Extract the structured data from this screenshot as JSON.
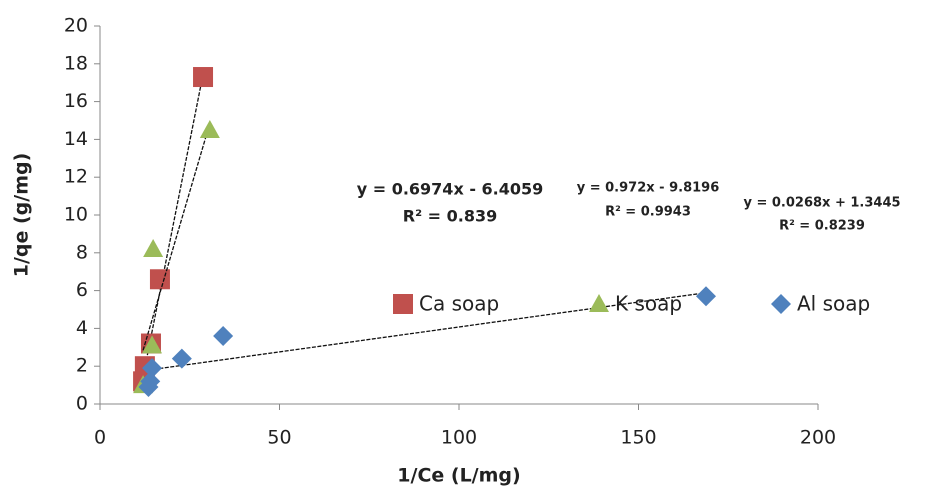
{
  "chart_data": {
    "type": "scatter",
    "x_label": "1/Ce (L/mg)",
    "y_label": "1/qe (g/mg)",
    "xlim": [
      0,
      200
    ],
    "xticks": [
      0,
      50,
      100,
      150,
      200
    ],
    "ylim": [
      0,
      20
    ],
    "yticks": [
      0,
      2,
      4,
      6,
      8,
      10,
      12,
      14,
      16,
      18,
      20
    ],
    "trendline": true,
    "series": [
      {
        "name": "Ca soap",
        "color": "#c0504d",
        "marker": "square",
        "x": [
          12,
          12.5,
          14.2,
          16.7,
          28.7
        ],
        "values": [
          1.2,
          2,
          3.2,
          6.6,
          17.3
        ]
      },
      {
        "name": "K soap",
        "color": "#9bbb59",
        "marker": "triangle",
        "x": [
          12,
          14.5,
          14.8,
          30.6
        ],
        "values": [
          1,
          3.1,
          8.2,
          14.5
        ]
      },
      {
        "name": "Al soap",
        "color": "#4f81bd",
        "marker": "diamond",
        "x": [
          13.5,
          14,
          14.5,
          22.8,
          34.3,
          168.8
        ],
        "values": [
          0.9,
          1.2,
          1.9,
          2.4,
          3.6,
          5.7
        ]
      }
    ],
    "annotations": [
      "y = 0.6974x - 6.4059",
      "R² = 0.839",
      "y = 0.972x - 9.8196",
      "R² = 0.9943",
      "y = 0.0268x + 1.3445",
      "R² = 0.8239"
    ]
  }
}
